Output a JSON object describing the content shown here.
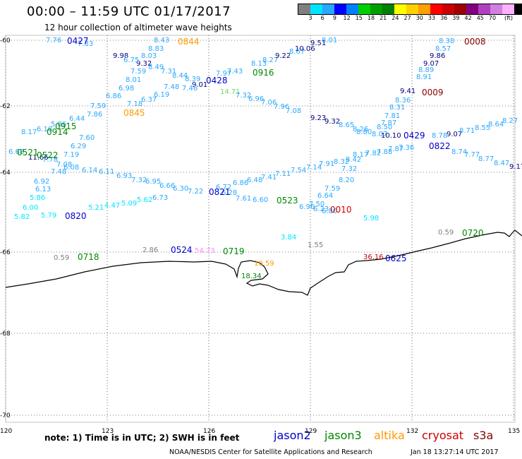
{
  "title": "00:00 – 11:59 UTC 01/17/2017",
  "subtitle": "12 hour collection of altimeter wave heights",
  "colorbar": {
    "colors": [
      "#7f7f7f",
      "#00e5ff",
      "#29a8ff",
      "#0000ff",
      "#0080ff",
      "#00d000",
      "#00a000",
      "#008000",
      "#ffff00",
      "#ffd000",
      "#ffa000",
      "#ff0000",
      "#cc0000",
      "#a00000",
      "#800080",
      "#b040c0",
      "#d080e0",
      "#ffb0ff",
      "#000000"
    ],
    "ticks": [
      "3",
      "6",
      "9",
      "12",
      "15",
      "18",
      "21",
      "24",
      "27",
      "30",
      "33",
      "36",
      "39",
      "42",
      "45",
      "70"
    ],
    "unit": "(ft)"
  },
  "axes": {
    "lat_labels": [
      "-60",
      "-62",
      "-64",
      "-66",
      "-68",
      "-70"
    ],
    "lon_labels": [
      "120",
      "123",
      "126",
      "129",
      "132",
      "135"
    ]
  },
  "note": "note: 1) Time is in UTC; 2) SWH is in feet",
  "legend": [
    {
      "name": "jason2",
      "color": "#0000cc"
    },
    {
      "name": "jason3",
      "color": "#008800"
    },
    {
      "name": "altika",
      "color": "#ff9900"
    },
    {
      "name": "cryosat",
      "color": "#cc0000"
    },
    {
      "name": "s3a",
      "color": "#880000"
    }
  ],
  "credit": "NOAA/NESDIS Center for Satellite Applications and Research",
  "timestamp": "Jan 18 13:27:14 UTC 2017",
  "pass_labels": [
    {
      "text": "0427",
      "color": "#0000cc"
    },
    {
      "text": "0844",
      "color": "#ff9900"
    },
    {
      "text": "0008",
      "color": "#880000"
    },
    {
      "text": "0916",
      "color": "#008800"
    },
    {
      "text": "0428",
      "color": "#0000cc"
    },
    {
      "text": "0009",
      "color": "#880000"
    },
    {
      "text": "0845",
      "color": "#ff9900"
    },
    {
      "text": "0915",
      "color": "#008800"
    },
    {
      "text": "0914",
      "color": "#008800"
    },
    {
      "text": "0429",
      "color": "#0000cc"
    },
    {
      "text": "0822",
      "color": "#0000cc"
    },
    {
      "text": "0521",
      "color": "#008800"
    },
    {
      "text": "0522",
      "color": "#008800"
    },
    {
      "text": "0821",
      "color": "#0000cc"
    },
    {
      "text": "0523",
      "color": "#008800"
    },
    {
      "text": "0010",
      "color": "#cc0000"
    },
    {
      "text": "0820",
      "color": "#0000cc"
    },
    {
      "text": "0720",
      "color": "#008800"
    },
    {
      "text": "0524",
      "color": "#0000cc"
    },
    {
      "text": "0719",
      "color": "#008800"
    },
    {
      "text": "0718",
      "color": "#008800"
    },
    {
      "text": "0625",
      "color": "#0000cc"
    }
  ],
  "values": [
    {
      "text": "7.76",
      "c": "#29a8ff"
    },
    {
      "text": "7.83",
      "c": "#29a8ff"
    },
    {
      "text": "8.43",
      "c": "#29a8ff"
    },
    {
      "text": "8.83",
      "c": "#29a8ff"
    },
    {
      "text": "8.03",
      "c": "#29a8ff"
    },
    {
      "text": "9.98",
      "c": "#000080"
    },
    {
      "text": "9.32",
      "c": "#000080"
    },
    {
      "text": "8.49",
      "c": "#29a8ff"
    },
    {
      "text": "6.75",
      "c": "#29a8ff"
    },
    {
      "text": "7.59",
      "c": "#29a8ff"
    },
    {
      "text": "7.31",
      "c": "#29a8ff"
    },
    {
      "text": "8.01",
      "c": "#29a8ff"
    },
    {
      "text": "8.44",
      "c": "#29a8ff"
    },
    {
      "text": "8.39",
      "c": "#29a8ff"
    },
    {
      "text": "9.01",
      "c": "#000080"
    },
    {
      "text": "7.46",
      "c": "#29a8ff"
    },
    {
      "text": "6.98",
      "c": "#29a8ff"
    },
    {
      "text": "6.86",
      "c": "#29a8ff"
    },
    {
      "text": "7.18",
      "c": "#29a8ff"
    },
    {
      "text": "6.37",
      "c": "#29a8ff"
    },
    {
      "text": "6.19",
      "c": "#29a8ff"
    },
    {
      "text": "7.48",
      "c": "#29a8ff"
    },
    {
      "text": "7.97",
      "c": "#29a8ff"
    },
    {
      "text": "7.43",
      "c": "#29a8ff"
    },
    {
      "text": "8.13",
      "c": "#29a8ff"
    },
    {
      "text": "8.27",
      "c": "#29a8ff"
    },
    {
      "text": "9.22",
      "c": "#000080"
    },
    {
      "text": "8.67",
      "c": "#29a8ff"
    },
    {
      "text": "10.06",
      "c": "#000080"
    },
    {
      "text": "9.51",
      "c": "#000080"
    },
    {
      "text": "8.01",
      "c": "#29a8ff"
    },
    {
      "text": "14.71",
      "c": "#66dd66"
    },
    {
      "text": "7.32",
      "c": "#29a8ff"
    },
    {
      "text": "6.96",
      "c": "#29a8ff"
    },
    {
      "text": "7.06",
      "c": "#29a8ff"
    },
    {
      "text": "7.96",
      "c": "#29a8ff"
    },
    {
      "text": "7.08",
      "c": "#29a8ff"
    },
    {
      "text": "9.23",
      "c": "#000080"
    },
    {
      "text": "9.32",
      "c": "#000080"
    },
    {
      "text": "8.38",
      "c": "#29a8ff"
    },
    {
      "text": "8.57",
      "c": "#29a8ff"
    },
    {
      "text": "9.86",
      "c": "#000080"
    },
    {
      "text": "9.07",
      "c": "#000080"
    },
    {
      "text": "8.89",
      "c": "#29a8ff"
    },
    {
      "text": "8.91",
      "c": "#29a8ff"
    },
    {
      "text": "9.41",
      "c": "#000080"
    },
    {
      "text": "8.36",
      "c": "#29a8ff"
    },
    {
      "text": "8.31",
      "c": "#29a8ff"
    },
    {
      "text": "7.81",
      "c": "#29a8ff"
    },
    {
      "text": "7.87",
      "c": "#29a8ff"
    },
    {
      "text": "8.50",
      "c": "#29a8ff"
    },
    {
      "text": "8.07",
      "c": "#29a8ff"
    },
    {
      "text": "8.65",
      "c": "#29a8ff"
    },
    {
      "text": "8.26",
      "c": "#29a8ff"
    },
    {
      "text": "8.80",
      "c": "#29a8ff"
    },
    {
      "text": "10.10",
      "c": "#000080"
    },
    {
      "text": "8.78",
      "c": "#29a8ff"
    },
    {
      "text": "9.07",
      "c": "#000080"
    },
    {
      "text": "8.71",
      "c": "#29a8ff"
    },
    {
      "text": "8.55",
      "c": "#29a8ff"
    },
    {
      "text": "8.64",
      "c": "#29a8ff"
    },
    {
      "text": "8.27",
      "c": "#29a8ff"
    },
    {
      "text": "8.74",
      "c": "#29a8ff"
    },
    {
      "text": "7.77",
      "c": "#29a8ff"
    },
    {
      "text": "8.77",
      "c": "#29a8ff"
    },
    {
      "text": "8.47",
      "c": "#29a8ff"
    },
    {
      "text": "9.17",
      "c": "#000080"
    },
    {
      "text": "8.17",
      "c": "#29a8ff"
    },
    {
      "text": "7.82",
      "c": "#29a8ff"
    },
    {
      "text": "7.88",
      "c": "#29a8ff"
    },
    {
      "text": "7.87",
      "c": "#29a8ff"
    },
    {
      "text": "7.36",
      "c": "#29a8ff"
    },
    {
      "text": "8.17",
      "c": "#29a8ff"
    },
    {
      "text": "6.18",
      "c": "#29a8ff"
    },
    {
      "text": "5.86",
      "c": "#29a8ff"
    },
    {
      "text": "6.44",
      "c": "#29a8ff"
    },
    {
      "text": "7.86",
      "c": "#29a8ff"
    },
    {
      "text": "7.59",
      "c": "#29a8ff"
    },
    {
      "text": "7.60",
      "c": "#29a8ff"
    },
    {
      "text": "6.29",
      "c": "#29a8ff"
    },
    {
      "text": "7.19",
      "c": "#29a8ff"
    },
    {
      "text": "6.68",
      "c": "#29a8ff"
    },
    {
      "text": "11.66",
      "c": "#000080"
    },
    {
      "text": "7.78",
      "c": "#29a8ff"
    },
    {
      "text": "7.08",
      "c": "#29a8ff"
    },
    {
      "text": "7.48",
      "c": "#29a8ff"
    },
    {
      "text": "6.08",
      "c": "#29a8ff"
    },
    {
      "text": "6.14",
      "c": "#29a8ff"
    },
    {
      "text": "6.11",
      "c": "#29a8ff"
    },
    {
      "text": "6.93",
      "c": "#29a8ff"
    },
    {
      "text": "7.32",
      "c": "#29a8ff"
    },
    {
      "text": "6.95",
      "c": "#29a8ff"
    },
    {
      "text": "6.66",
      "c": "#29a8ff"
    },
    {
      "text": "6.30",
      "c": "#29a8ff"
    },
    {
      "text": "7.22",
      "c": "#29a8ff"
    },
    {
      "text": "6.92",
      "c": "#29a8ff"
    },
    {
      "text": "6.13",
      "c": "#29a8ff"
    },
    {
      "text": "5.86",
      "c": "#00e5ff"
    },
    {
      "text": "6.00",
      "c": "#00e5ff"
    },
    {
      "text": "5.82",
      "c": "#00e5ff"
    },
    {
      "text": "5.79",
      "c": "#00e5ff"
    },
    {
      "text": "5.21",
      "c": "#00e5ff"
    },
    {
      "text": "4.47",
      "c": "#00e5ff"
    },
    {
      "text": "5.09",
      "c": "#00e5ff"
    },
    {
      "text": "5.62",
      "c": "#00e5ff"
    },
    {
      "text": "6.73",
      "c": "#29a8ff"
    },
    {
      "text": "6.72",
      "c": "#29a8ff"
    },
    {
      "text": "6.28",
      "c": "#29a8ff"
    },
    {
      "text": "6.86",
      "c": "#29a8ff"
    },
    {
      "text": "6.48",
      "c": "#29a8ff"
    },
    {
      "text": "7.61",
      "c": "#29a8ff"
    },
    {
      "text": "6.60",
      "c": "#29a8ff"
    },
    {
      "text": "7.41",
      "c": "#29a8ff"
    },
    {
      "text": "7.11",
      "c": "#29a8ff"
    },
    {
      "text": "7.54",
      "c": "#29a8ff"
    },
    {
      "text": "7.14",
      "c": "#29a8ff"
    },
    {
      "text": "7.91",
      "c": "#29a8ff"
    },
    {
      "text": "8.32",
      "c": "#29a8ff"
    },
    {
      "text": "7.32",
      "c": "#29a8ff"
    },
    {
      "text": "8.42",
      "c": "#29a8ff"
    },
    {
      "text": "8.20",
      "c": "#29a8ff"
    },
    {
      "text": "7.59",
      "c": "#29a8ff"
    },
    {
      "text": "6.64",
      "c": "#29a8ff"
    },
    {
      "text": "7.50",
      "c": "#29a8ff"
    },
    {
      "text": "6.96",
      "c": "#29a8ff"
    },
    {
      "text": "6.23",
      "c": "#29a8ff"
    },
    {
      "text": "6.80",
      "c": "#29a8ff"
    },
    {
      "text": "5.98",
      "c": "#00e5ff"
    },
    {
      "text": "3.84",
      "c": "#00e5ff"
    },
    {
      "text": "1.55",
      "c": "#7f7f7f"
    },
    {
      "text": "0.59",
      "c": "#7f7f7f"
    },
    {
      "text": "0.59",
      "c": "#7f7f7f"
    },
    {
      "text": "2.86",
      "c": "#7f7f7f"
    },
    {
      "text": "54.73",
      "c": "#ff88ff"
    },
    {
      "text": "10.59",
      "c": "#ff9900"
    },
    {
      "text": "18.34",
      "c": "#008800"
    },
    {
      "text": "36.16",
      "c": "#cc0000"
    },
    {
      "text": "7.12",
      "c": "#29a8ff"
    }
  ]
}
